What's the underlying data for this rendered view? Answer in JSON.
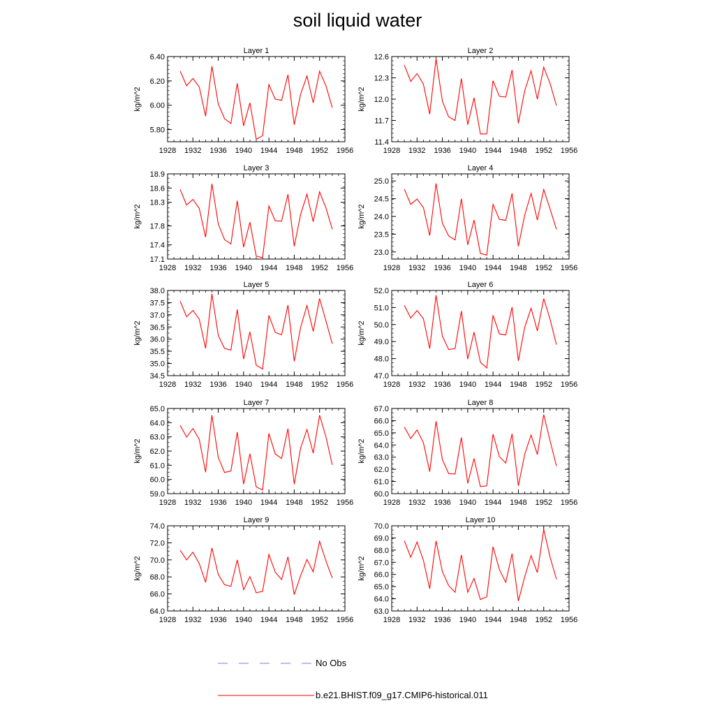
{
  "title": "soil liquid water",
  "legend": {
    "obs_label": "No Obs",
    "obs_color": "#7b7bd8",
    "model_label": "b.e21.BHIST.f09_g17.CMIP6-historical.011",
    "model_color": "#ff0000"
  },
  "chart_data": [
    {
      "type": "line",
      "title": "Layer 1",
      "ylabel": "kg/m^2",
      "xlim": [
        1928,
        1956
      ],
      "xticks": [
        "1928",
        "1932",
        "1936",
        "1940",
        "1944",
        "1948",
        "1952",
        "1956"
      ],
      "ylim": [
        5.7,
        6.4
      ],
      "yticks": [
        "5.80",
        "6.00",
        "6.20",
        "6.40"
      ],
      "ytick_values": [
        5.8,
        6.0,
        6.2,
        6.4
      ],
      "x": [
        1930,
        1931,
        1932,
        1933,
        1934,
        1935,
        1936,
        1937,
        1938,
        1939,
        1940,
        1941,
        1942,
        1943,
        1944,
        1945,
        1946,
        1947,
        1948,
        1949,
        1950,
        1951,
        1952,
        1953,
        1954
      ],
      "series": [
        {
          "name": "b.e21.BHIST.f09_g17.CMIP6-historical.011",
          "values": [
            6.28,
            6.16,
            6.22,
            6.15,
            5.91,
            6.32,
            6.01,
            5.89,
            5.85,
            6.18,
            5.83,
            6.02,
            5.72,
            5.75,
            6.17,
            6.05,
            6.04,
            6.25,
            5.84,
            6.09,
            6.24,
            6.02,
            6.28,
            6.16,
            5.98
          ]
        }
      ]
    },
    {
      "type": "line",
      "title": "Layer 2",
      "ylabel": "kg/m^2",
      "xlim": [
        1928,
        1956
      ],
      "xticks": [
        "1928",
        "1932",
        "1936",
        "1940",
        "1944",
        "1948",
        "1952",
        "1956"
      ],
      "ylim": [
        11.4,
        12.6
      ],
      "yticks": [
        "11.4",
        "11.7",
        "12.0",
        "12.3",
        "12.6"
      ],
      "ytick_values": [
        11.4,
        11.7,
        12.0,
        12.3,
        12.6
      ],
      "x": [
        1930,
        1931,
        1932,
        1933,
        1934,
        1935,
        1936,
        1937,
        1938,
        1939,
        1940,
        1941,
        1942,
        1943,
        1944,
        1945,
        1946,
        1947,
        1948,
        1949,
        1950,
        1951,
        1952,
        1953,
        1954
      ],
      "series": [
        {
          "name": "b.e21.BHIST.f09_g17.CMIP6-historical.011",
          "values": [
            12.48,
            12.25,
            12.36,
            12.21,
            11.79,
            12.57,
            11.97,
            11.75,
            11.7,
            12.29,
            11.64,
            12.02,
            11.51,
            11.51,
            12.26,
            12.04,
            12.03,
            12.41,
            11.66,
            12.12,
            12.4,
            12.0,
            12.45,
            12.22,
            11.91
          ]
        }
      ]
    },
    {
      "type": "line",
      "title": "Layer 3",
      "ylabel": "kg/m^2",
      "xlim": [
        1928,
        1956
      ],
      "xticks": [
        "1928",
        "1932",
        "1936",
        "1940",
        "1944",
        "1948",
        "1952",
        "1956"
      ],
      "ylim": [
        17.1,
        18.9
      ],
      "yticks": [
        "17.1",
        "17.4",
        "17.8",
        "18.3",
        "18.6",
        "18.9"
      ],
      "ytick_values": [
        17.1,
        17.4,
        17.8,
        18.3,
        18.6,
        18.9
      ],
      "x": [
        1930,
        1931,
        1932,
        1933,
        1934,
        1935,
        1936,
        1937,
        1938,
        1939,
        1940,
        1941,
        1942,
        1943,
        1944,
        1945,
        1946,
        1947,
        1948,
        1949,
        1950,
        1951,
        1952,
        1953,
        1954
      ],
      "series": [
        {
          "name": "b.e21.BHIST.f09_g17.CMIP6-historical.011",
          "values": [
            18.57,
            18.24,
            18.36,
            18.17,
            17.56,
            18.69,
            17.84,
            17.51,
            17.42,
            18.33,
            17.35,
            17.88,
            17.16,
            17.13,
            18.22,
            17.91,
            17.9,
            18.47,
            17.37,
            18.04,
            18.47,
            17.89,
            18.52,
            18.18,
            17.73
          ]
        }
      ]
    },
    {
      "type": "line",
      "title": "Layer 4",
      "ylabel": "kg/m^2",
      "xlim": [
        1928,
        1956
      ],
      "xticks": [
        "1928",
        "1932",
        "1936",
        "1940",
        "1944",
        "1948",
        "1952",
        "1956"
      ],
      "ylim": [
        22.8,
        25.2
      ],
      "yticks": [
        "23.0",
        "23.5",
        "24.0",
        "24.5",
        "25.0"
      ],
      "ytick_values": [
        23.0,
        23.5,
        24.0,
        24.5,
        25.0
      ],
      "x": [
        1930,
        1931,
        1932,
        1933,
        1934,
        1935,
        1936,
        1937,
        1938,
        1939,
        1940,
        1941,
        1942,
        1943,
        1944,
        1945,
        1946,
        1947,
        1948,
        1949,
        1950,
        1951,
        1952,
        1953,
        1954
      ],
      "series": [
        {
          "name": "b.e21.BHIST.f09_g17.CMIP6-historical.011",
          "values": [
            24.77,
            24.34,
            24.49,
            24.25,
            23.46,
            24.93,
            23.81,
            23.45,
            23.34,
            24.5,
            23.2,
            23.9,
            22.96,
            22.91,
            24.34,
            23.92,
            23.89,
            24.65,
            23.16,
            24.04,
            24.65,
            23.9,
            24.76,
            24.21,
            23.64
          ]
        }
      ]
    },
    {
      "type": "line",
      "title": "Layer 5",
      "ylabel": "kg/m^2",
      "xlim": [
        1928,
        1956
      ],
      "xticks": [
        "1928",
        "1932",
        "1936",
        "1940",
        "1944",
        "1948",
        "1952",
        "1956"
      ],
      "ylim": [
        34.5,
        38.0
      ],
      "yticks": [
        "34.5",
        "35.0",
        "35.5",
        "36.0",
        "36.5",
        "37.0",
        "37.5",
        "38.0"
      ],
      "ytick_values": [
        34.5,
        35.0,
        35.5,
        36.0,
        36.5,
        37.0,
        37.5,
        38.0
      ],
      "x": [
        1930,
        1931,
        1932,
        1933,
        1934,
        1935,
        1936,
        1937,
        1938,
        1939,
        1940,
        1941,
        1942,
        1943,
        1944,
        1945,
        1946,
        1947,
        1948,
        1949,
        1950,
        1951,
        1952,
        1953,
        1954
      ],
      "series": [
        {
          "name": "b.e21.BHIST.f09_g17.CMIP6-historical.011",
          "values": [
            37.56,
            36.92,
            37.18,
            36.82,
            35.62,
            37.86,
            36.15,
            35.62,
            35.55,
            37.22,
            35.18,
            36.3,
            34.93,
            34.77,
            36.98,
            36.28,
            36.18,
            37.4,
            35.09,
            36.48,
            37.38,
            36.32,
            37.67,
            36.75,
            35.81
          ]
        }
      ]
    },
    {
      "type": "line",
      "title": "Layer 6",
      "ylabel": "kg/m^2",
      "xlim": [
        1928,
        1956
      ],
      "xticks": [
        "1928",
        "1932",
        "1936",
        "1940",
        "1944",
        "1948",
        "1952",
        "1956"
      ],
      "ylim": [
        47.0,
        52.0
      ],
      "yticks": [
        "47.0",
        "48.0",
        "49.0",
        "50.0",
        "51.0",
        "52.0"
      ],
      "ytick_values": [
        47.0,
        48.0,
        49.0,
        50.0,
        51.0,
        52.0
      ],
      "x": [
        1930,
        1931,
        1932,
        1933,
        1934,
        1935,
        1936,
        1937,
        1938,
        1939,
        1940,
        1941,
        1942,
        1943,
        1944,
        1945,
        1946,
        1947,
        1948,
        1949,
        1950,
        1951,
        1952,
        1953,
        1954
      ],
      "series": [
        {
          "name": "b.e21.BHIST.f09_g17.CMIP6-historical.011",
          "values": [
            51.13,
            50.38,
            50.82,
            50.34,
            48.59,
            51.72,
            49.31,
            48.53,
            48.59,
            50.79,
            47.97,
            49.55,
            47.79,
            47.45,
            50.54,
            49.45,
            49.39,
            51.02,
            47.87,
            49.84,
            50.96,
            49.63,
            51.52,
            50.31,
            48.82
          ]
        }
      ]
    },
    {
      "type": "line",
      "title": "Layer 7",
      "ylabel": "kg/m^2",
      "xlim": [
        1928,
        1956
      ],
      "xticks": [
        "1928",
        "1932",
        "1936",
        "1940",
        "1944",
        "1948",
        "1952",
        "1956"
      ],
      "ylim": [
        59.0,
        65.0
      ],
      "yticks": [
        "59.0",
        "60.0",
        "61.0",
        "62.0",
        "63.0",
        "64.0",
        "65.0"
      ],
      "ytick_values": [
        59.0,
        60.0,
        61.0,
        62.0,
        63.0,
        64.0,
        65.0
      ],
      "x": [
        1930,
        1931,
        1932,
        1933,
        1934,
        1935,
        1936,
        1937,
        1938,
        1939,
        1940,
        1941,
        1942,
        1943,
        1944,
        1945,
        1946,
        1947,
        1948,
        1949,
        1950,
        1951,
        1952,
        1953,
        1954
      ],
      "series": [
        {
          "name": "b.e21.BHIST.f09_g17.CMIP6-historical.011",
          "values": [
            63.8,
            62.99,
            63.59,
            62.82,
            60.51,
            64.53,
            61.55,
            60.49,
            60.6,
            63.34,
            59.67,
            61.81,
            59.47,
            59.26,
            63.24,
            61.8,
            61.48,
            63.58,
            59.67,
            62.2,
            63.52,
            61.85,
            64.53,
            63.01,
            61.02
          ]
        }
      ]
    },
    {
      "type": "line",
      "title": "Layer 8",
      "ylabel": "kg/m^2",
      "xlim": [
        1928,
        1956
      ],
      "xticks": [
        "1928",
        "1932",
        "1936",
        "1940",
        "1944",
        "1948",
        "1952",
        "1956"
      ],
      "ylim": [
        60.0,
        67.0
      ],
      "yticks": [
        "60.0",
        "61.0",
        "62.0",
        "63.0",
        "64.0",
        "65.0",
        "66.0",
        "67.0"
      ],
      "ytick_values": [
        60.0,
        61.0,
        62.0,
        63.0,
        64.0,
        65.0,
        66.0,
        67.0
      ],
      "x": [
        1930,
        1931,
        1932,
        1933,
        1934,
        1935,
        1936,
        1937,
        1938,
        1939,
        1940,
        1941,
        1942,
        1943,
        1944,
        1945,
        1946,
        1947,
        1948,
        1949,
        1950,
        1951,
        1952,
        1953,
        1954
      ],
      "series": [
        {
          "name": "b.e21.BHIST.f09_g17.CMIP6-historical.011",
          "values": [
            65.48,
            64.53,
            65.23,
            64.19,
            61.81,
            65.95,
            62.79,
            61.64,
            61.61,
            64.62,
            60.85,
            62.89,
            60.58,
            60.64,
            64.89,
            63.04,
            62.52,
            64.91,
            60.64,
            63.24,
            64.82,
            63.22,
            66.5,
            64.35,
            62.27
          ]
        }
      ]
    },
    {
      "type": "line",
      "title": "Layer 9",
      "ylabel": "kg/m^2",
      "xlim": [
        1928,
        1956
      ],
      "xticks": [
        "1928",
        "1932",
        "1936",
        "1940",
        "1944",
        "1948",
        "1952",
        "1956"
      ],
      "ylim": [
        64.0,
        74.0
      ],
      "yticks": [
        "64.0",
        "66.0",
        "68.0",
        "70.0",
        "72.0",
        "74.0"
      ],
      "ytick_values": [
        64.0,
        66.0,
        68.0,
        70.0,
        72.0,
        74.0
      ],
      "x": [
        1930,
        1931,
        1932,
        1933,
        1934,
        1935,
        1936,
        1937,
        1938,
        1939,
        1940,
        1941,
        1942,
        1943,
        1944,
        1945,
        1946,
        1947,
        1948,
        1949,
        1950,
        1951,
        1952,
        1953,
        1954
      ],
      "series": [
        {
          "name": "b.e21.BHIST.f09_g17.CMIP6-historical.011",
          "values": [
            71.12,
            70.0,
            70.9,
            69.56,
            67.35,
            71.4,
            68.28,
            67.08,
            66.9,
            69.99,
            66.49,
            68.04,
            66.14,
            66.3,
            70.62,
            68.55,
            67.69,
            70.35,
            65.92,
            68.13,
            70.04,
            68.59,
            72.18,
            69.86,
            67.87
          ]
        }
      ]
    },
    {
      "type": "line",
      "title": "Layer 10",
      "ylabel": "kg/m^2",
      "xlim": [
        1928,
        1956
      ],
      "xticks": [
        "1928",
        "1932",
        "1936",
        "1940",
        "1944",
        "1948",
        "1952",
        "1956"
      ],
      "ylim": [
        63.0,
        70.0
      ],
      "yticks": [
        "63.0",
        "64.0",
        "65.0",
        "66.0",
        "67.0",
        "68.0",
        "69.0",
        "70.0"
      ],
      "ytick_values": [
        63.0,
        64.0,
        65.0,
        66.0,
        67.0,
        68.0,
        69.0,
        70.0
      ],
      "x": [
        1930,
        1931,
        1932,
        1933,
        1934,
        1935,
        1936,
        1937,
        1938,
        1939,
        1940,
        1941,
        1942,
        1943,
        1944,
        1945,
        1946,
        1947,
        1948,
        1949,
        1950,
        1951,
        1952,
        1953,
        1954
      ],
      "series": [
        {
          "name": "b.e21.BHIST.f09_g17.CMIP6-historical.011",
          "values": [
            68.78,
            67.42,
            68.67,
            67.16,
            64.83,
            68.76,
            66.23,
            65.08,
            64.54,
            67.6,
            64.54,
            65.68,
            63.94,
            64.16,
            68.28,
            66.41,
            65.35,
            67.71,
            63.82,
            65.81,
            67.55,
            66.15,
            69.7,
            67.43,
            65.61
          ]
        }
      ]
    }
  ]
}
